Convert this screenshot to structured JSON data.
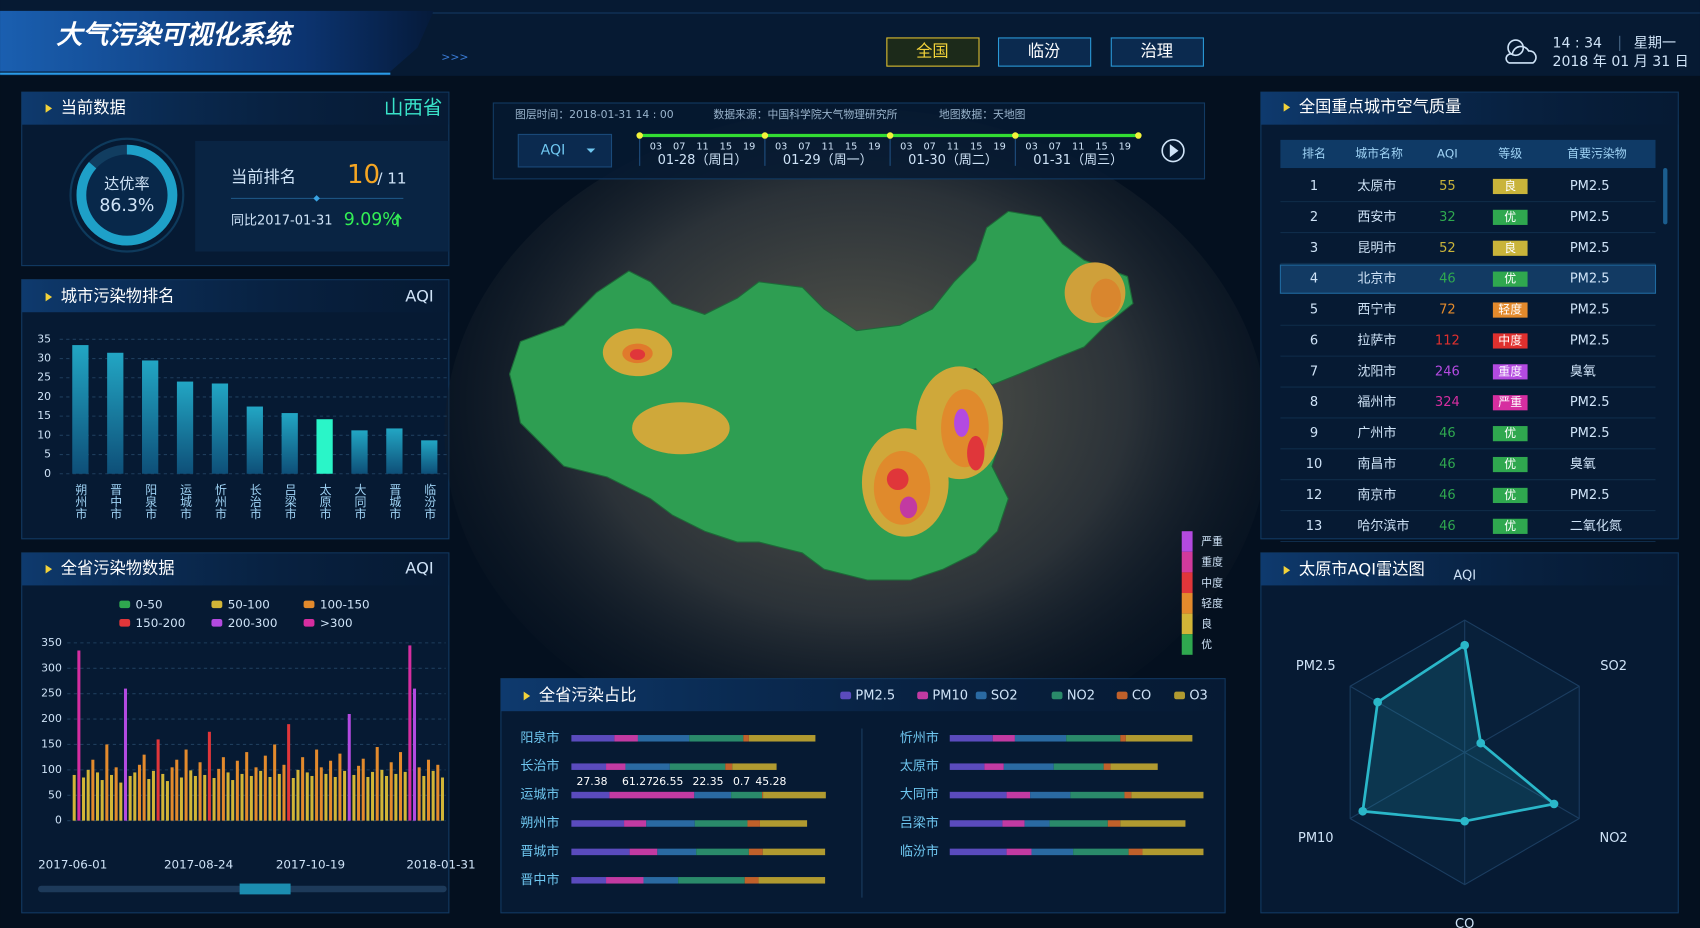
{
  "header": {
    "title": "大气污染可视化系统",
    "arrows": ">>>",
    "nav": [
      "全国",
      "临汾",
      "治理"
    ],
    "time": "14 : 34",
    "weekday": "星期一",
    "date": "2018 年 01 月 31 日"
  },
  "current": {
    "title": "当前数据",
    "province": "山西省",
    "ring_label": "达优率",
    "ring_value": {
      "value": 86.3,
      "label": "86.3%"
    },
    "rank_label": "当前排名",
    "rank": "10",
    "rank_total": "/ 11",
    "yoy_label": "同比2017-01-31",
    "yoy": "9.09%"
  },
  "map": {
    "layer_time": "图层时间：2018-01-31  14 : 00",
    "source": "数据来源：中国科学院大气物理研究所",
    "map_source": "地图数据：天地图",
    "selector": "AQI",
    "hours": [
      "03",
      "07",
      "11",
      "15",
      "19"
    ],
    "days": [
      "01-28（周日）",
      "01-29（周一）",
      "01-30（周二）",
      "01-31（周三）"
    ],
    "legend": [
      {
        "name": "严重",
        "color": "#b34ae0"
      },
      {
        "name": "重度",
        "color": "#d23a9c"
      },
      {
        "name": "中度",
        "color": "#e0363a"
      },
      {
        "name": "轻度",
        "color": "#e38a2c"
      },
      {
        "name": "良",
        "color": "#d2b537"
      },
      {
        "name": "优",
        "color": "#2fa84f"
      }
    ]
  },
  "table": {
    "title": "全国重点城市空气质量",
    "header": [
      "排名",
      "城市名称",
      "AQI",
      "等级",
      "首要污染物"
    ],
    "rows": [
      [
        "1",
        "太原市",
        "55",
        "良",
        "PM2.5"
      ],
      [
        "2",
        "西安市",
        "32",
        "优",
        "PM2.5"
      ],
      [
        "3",
        "昆明市",
        "52",
        "良",
        "PM2.5"
      ],
      [
        "4",
        "北京市",
        "46",
        "优",
        "PM2.5"
      ],
      [
        "5",
        "西宁市",
        "72",
        "轻度",
        "PM2.5"
      ],
      [
        "6",
        "拉萨市",
        "112",
        "中度",
        "PM2.5"
      ],
      [
        "7",
        "沈阳市",
        "246",
        "重度",
        "臭氧"
      ],
      [
        "8",
        "福州市",
        "324",
        "严重",
        "PM2.5"
      ],
      [
        "9",
        "广州市",
        "46",
        "优",
        "PM2.5"
      ],
      [
        "10",
        "南昌市",
        "46",
        "优",
        "臭氧"
      ],
      [
        "12",
        "南京市",
        "46",
        "优",
        "PM2.5"
      ],
      [
        "13",
        "哈尔滨市",
        "46",
        "优",
        "二氧化氮"
      ]
    ],
    "level_colors": {
      "优": "#2fa84f",
      "良": "#c9b43a",
      "轻度": "#e38a2c",
      "中度": "#e0302e",
      "重度": "#b34ae0",
      "严重": "#d62ea0"
    }
  },
  "chart_data": [
    {
      "type": "bar",
      "title": "城市污染物排名",
      "unit": "AQI",
      "categories": [
        "朔州市",
        "晋中市",
        "阳泉市",
        "运城市",
        "忻州市",
        "长治市",
        "吕梁市",
        "太原市",
        "大同市",
        "晋城市",
        "临汾市"
      ],
      "values": [
        33.5,
        31.5,
        29.5,
        24,
        23.5,
        17.5,
        15.8,
        14.2,
        11.3,
        11.8,
        8.7
      ],
      "color": "#1b8db0",
      "highlight_color": "#2af5c8",
      "ylim": [
        0,
        35
      ],
      "yticks": [
        0,
        5,
        10,
        15,
        20,
        25,
        30,
        35
      ],
      "grid": true
    },
    {
      "type": "banded_bar",
      "title": "全省污染物数据",
      "unit": "AQI",
      "bands": [
        {
          "name": "0-50",
          "color": "#2fa84f"
        },
        {
          "name": "50-100",
          "color": "#d2b537"
        },
        {
          "name": "100-150",
          "color": "#e38a2c"
        },
        {
          "name": "150-200",
          "color": "#e0363a"
        },
        {
          "name": "200-300",
          "color": "#b34ae0"
        },
        {
          "name": ">300",
          "color": "#d62ea0"
        }
      ],
      "categories": [
        "2017-06-01",
        null,
        null,
        null,
        null,
        null,
        null,
        null,
        null,
        null,
        null,
        null,
        null,
        null,
        null,
        null,
        null,
        null,
        null,
        null,
        null,
        null,
        null,
        null,
        null,
        null,
        null,
        "2017-08-24",
        null,
        null,
        null,
        null,
        null,
        null,
        null,
        null,
        null,
        null,
        null,
        null,
        null,
        null,
        null,
        null,
        null,
        null,
        null,
        null,
        null,
        null,
        null,
        "2017-10-19",
        null,
        null,
        null,
        null,
        null,
        null,
        null,
        null,
        null,
        null,
        null,
        null,
        null,
        null,
        null,
        null,
        null,
        null,
        null,
        null,
        null,
        null,
        null,
        null,
        null,
        null,
        null,
        "2018-01-31"
      ],
      "values": [
        90,
        335,
        85,
        100,
        120,
        95,
        80,
        150,
        90,
        105,
        75,
        260,
        88,
        95,
        110,
        130,
        82,
        98,
        160,
        92,
        78,
        105,
        120,
        85,
        140,
        99,
        88,
        115,
        90,
        175,
        84,
        102,
        125,
        95,
        80,
        118,
        92,
        135,
        88,
        105,
        98,
        128,
        86,
        150,
        92,
        110,
        190,
        84,
        100,
        125,
        95,
        88,
        140,
        105,
        92,
        118,
        86,
        132,
        98,
        210,
        90,
        108,
        122,
        86,
        96,
        145,
        100,
        88,
        115,
        92,
        135,
        96,
        345,
        260,
        105,
        88,
        120,
        98,
        110,
        85
      ],
      "ylim": [
        0,
        350
      ],
      "yticks": [
        0,
        50,
        100,
        150,
        200,
        250,
        300,
        350
      ],
      "grid": true
    },
    {
      "type": "stacked_barh",
      "title": "全省污染占比",
      "categories": [
        "阳泉市",
        "长治市",
        "运城市",
        "朔州市",
        "晋城市",
        "晋中市",
        "忻州市",
        "太原市",
        "大同市",
        "吕梁市",
        "临汾市"
      ],
      "xlim": [
        0,
        190
      ],
      "series": [
        {
          "name": "PM2.5",
          "color": "#5a4bbd",
          "values": [
            31,
            25,
            27.38,
            38,
            42,
            25,
            31,
            25,
            41,
            38,
            41
          ]
        },
        {
          "name": "PM10",
          "color": "#c23aa2",
          "values": [
            17,
            14,
            61.27,
            16,
            20,
            27,
            16,
            14,
            17,
            16,
            18
          ]
        },
        {
          "name": "SO2",
          "color": "#2a6aa2",
          "values": [
            37,
            32,
            26.55,
            35,
            28,
            25,
            37,
            36,
            29,
            18,
            30
          ]
        },
        {
          "name": "NO2",
          "color": "#2a8a6a",
          "values": [
            39,
            40,
            22.35,
            38,
            38,
            48,
            39,
            36,
            39,
            42,
            40
          ]
        },
        {
          "name": "CO",
          "color": "#c0602a",
          "values": [
            4,
            5,
            0.7,
            9,
            10,
            10,
            4,
            5,
            5,
            9,
            10
          ]
        },
        {
          "name": "O3",
          "color": "#b09a30",
          "values": [
            48,
            32,
            45.28,
            34,
            45,
            48,
            48,
            34,
            52,
            47,
            44
          ]
        }
      ]
    },
    {
      "type": "radar",
      "title": "太原市AQI雷达图",
      "categories": [
        "AQI",
        "SO2",
        "NO2",
        "CO",
        "PM10",
        "PM2.5"
      ],
      "values": [
        81,
        14,
        78,
        52,
        89,
        76
      ],
      "rlim": [
        0,
        100
      ],
      "rticks": [
        20,
        40,
        60,
        80,
        100
      ],
      "color": "#2ab7c9"
    }
  ]
}
